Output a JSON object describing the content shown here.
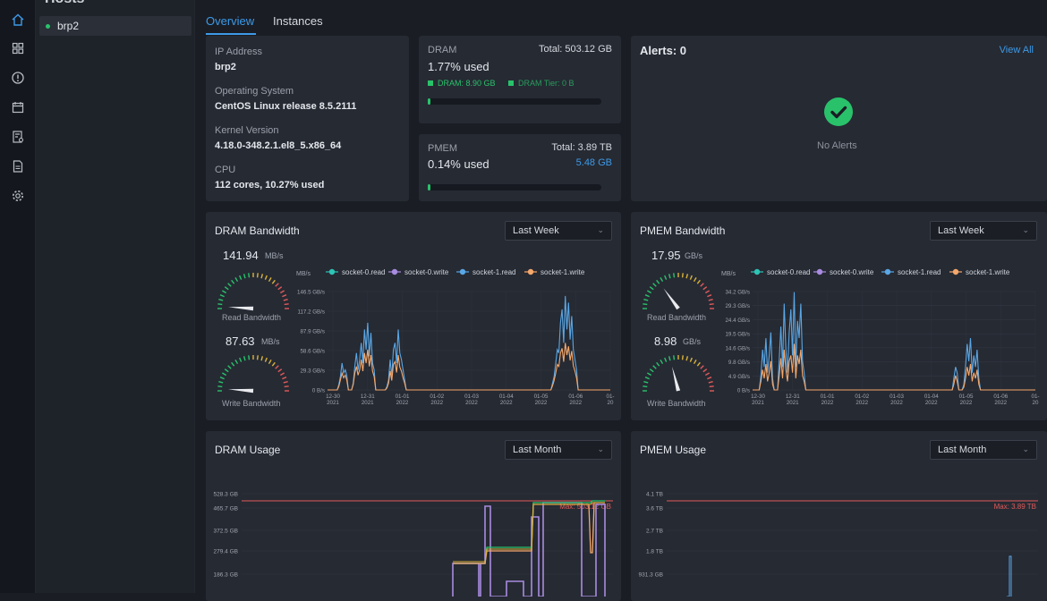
{
  "sidebar": {
    "header": "Hosts",
    "hosts": [
      {
        "name": "brp2",
        "status": "online"
      }
    ]
  },
  "rail_icons": [
    "home-icon",
    "dashboard-grid-icon",
    "alert-circle-icon",
    "calendar-icon",
    "report-icon",
    "document-icon",
    "settings-gear-icon"
  ],
  "tabs": [
    {
      "label": "Overview",
      "active": true
    },
    {
      "label": "Instances",
      "active": false
    }
  ],
  "host_info": {
    "ip_label": "IP Address",
    "ip_value": "brp2",
    "os_label": "Operating System",
    "os_value": "CentOS Linux release 8.5.2111",
    "kernel_label": "Kernel Version",
    "kernel_value": "4.18.0-348.2.1.el8_5.x86_64",
    "cpu_label": "CPU",
    "cpu_value": "112 cores, 10.27% used"
  },
  "dram_card": {
    "title": "DRAM",
    "total": "Total: 503.12 GB",
    "used": "1.77% used",
    "legend_dram": "DRAM: 8.90 GB",
    "legend_tier": "DRAM Tier: 0 B",
    "usage_fraction": 0.0177
  },
  "pmem_card": {
    "title": "PMEM",
    "total": "Total: 3.89 TB",
    "used": "0.14% used",
    "capacity": "5.48 GB",
    "usage_fraction": 0.0014
  },
  "alerts": {
    "title": "Alerts: 0",
    "view_all": "View All",
    "empty_text": "No Alerts"
  },
  "colors": {
    "accent": "#3d9ae8",
    "green": "#29c26b",
    "socket0read": "#2ec4b6",
    "socket0write": "#a98be0",
    "socket1read": "#5aa7e6",
    "socket1write": "#f5a86b",
    "max_line": "#e05a5a"
  },
  "dram_bw": {
    "title": "DRAM Bandwidth",
    "range": "Last Week",
    "read_value": "141.94",
    "read_unit": "MB/s",
    "read_label": "Read Bandwidth",
    "write_value": "87.63",
    "write_unit": "MB/s",
    "write_label": "Write Bandwidth",
    "read_fraction": 0.02,
    "write_fraction": 0.02
  },
  "pmem_bw": {
    "title": "PMEM Bandwidth",
    "range": "Last Week",
    "read_value": "17.95",
    "read_unit": "GB/s",
    "read_label": "Read Bandwidth",
    "write_value": "8.98",
    "write_unit": "GB/s",
    "write_label": "Write Bandwidth",
    "read_fraction": 0.3,
    "write_fraction": 0.42
  },
  "dram_usage": {
    "title": "DRAM Usage",
    "range": "Last Month",
    "max_label": "Max: 503.12 GB"
  },
  "pmem_usage": {
    "title": "PMEM Usage",
    "range": "Last Month",
    "max_label": "Max: 3.89 TB"
  },
  "chart_data": [
    {
      "type": "line",
      "ylabel": "MB/s",
      "yticks": [
        "0 B/s",
        "29.3 GB/s",
        "58.6 GB/s",
        "87.9 GB/s",
        "117.2 GB/s",
        "146.5 GB/s"
      ],
      "xticks": [
        "12-30\n2021",
        "12-31\n2021",
        "01-01\n2022",
        "01-02\n2022",
        "01-03\n2022",
        "01-04\n2022",
        "01-05\n2022",
        "01-06\n2022",
        "01-\n20"
      ],
      "series": [
        {
          "name": "socket-0.read",
          "color": "#2ec4b6"
        },
        {
          "name": "socket-0.write",
          "color": "#a98be0"
        },
        {
          "name": "socket-1.read",
          "color": "#5aa7e6",
          "values": [
            0,
            0,
            0,
            0,
            0,
            0,
            0,
            8,
            20,
            40,
            25,
            30,
            22,
            0,
            0,
            0,
            10,
            35,
            55,
            30,
            45,
            70,
            40,
            90,
            60,
            100,
            50,
            85,
            40,
            30,
            0,
            0,
            0,
            0,
            0,
            0,
            0,
            5,
            15,
            45,
            20,
            60,
            70,
            40,
            90,
            55,
            45,
            30,
            15,
            0,
            0,
            0,
            0,
            0,
            0,
            0,
            0,
            0,
            0,
            0,
            0,
            0,
            0,
            0,
            0,
            0,
            0,
            0,
            0,
            0,
            0,
            0,
            0,
            0,
            0,
            0,
            0,
            0,
            0,
            0,
            0,
            0,
            0,
            0,
            0,
            0,
            0,
            0,
            0,
            0,
            0,
            0,
            0,
            0,
            0,
            0,
            0,
            0,
            0,
            0,
            0,
            0,
            0,
            0,
            0,
            0,
            0,
            0,
            0,
            0,
            0,
            0,
            0,
            0,
            0,
            0,
            0,
            0,
            0,
            0,
            0,
            0,
            0,
            0,
            0,
            0,
            0,
            0,
            0,
            0,
            0,
            0,
            0,
            0,
            0,
            0,
            0,
            0,
            0,
            0,
            10,
            20,
            40,
            60,
            55,
            100,
            120,
            70,
            140,
            90,
            130,
            75,
            110,
            60,
            45,
            30,
            0,
            0,
            0,
            0,
            0,
            0,
            0,
            0,
            0,
            0,
            0,
            0,
            0,
            0,
            0,
            0,
            0,
            0,
            0,
            0,
            0
          ]
        },
        {
          "name": "socket-1.write",
          "color": "#f5a86b",
          "values": [
            0,
            0,
            0,
            0,
            0,
            0,
            0,
            5,
            15,
            25,
            18,
            22,
            15,
            0,
            0,
            0,
            8,
            25,
            35,
            22,
            30,
            45,
            28,
            55,
            40,
            60,
            35,
            52,
            28,
            20,
            0,
            0,
            0,
            0,
            0,
            0,
            0,
            3,
            10,
            28,
            14,
            38,
            42,
            26,
            52,
            34,
            28,
            18,
            10,
            0,
            0,
            0,
            0,
            0,
            0,
            0,
            0,
            0,
            0,
            0,
            0,
            0,
            0,
            0,
            0,
            0,
            0,
            0,
            0,
            0,
            0,
            0,
            0,
            0,
            0,
            0,
            0,
            0,
            0,
            0,
            0,
            0,
            0,
            0,
            0,
            0,
            0,
            0,
            0,
            0,
            0,
            0,
            0,
            0,
            0,
            0,
            0,
            0,
            0,
            0,
            0,
            0,
            0,
            0,
            0,
            0,
            0,
            0,
            0,
            0,
            0,
            0,
            0,
            0,
            0,
            0,
            0,
            0,
            0,
            0,
            0,
            0,
            0,
            0,
            0,
            0,
            0,
            0,
            0,
            0,
            0,
            0,
            0,
            0,
            0,
            0,
            0,
            0,
            0,
            0,
            6,
            14,
            25,
            38,
            35,
            55,
            62,
            42,
            70,
            52,
            65,
            44,
            58,
            36,
            28,
            18,
            0,
            0,
            0,
            0,
            0,
            0,
            0,
            0,
            0,
            0,
            0,
            0,
            0,
            0,
            0,
            0,
            0,
            0,
            0,
            0,
            0
          ]
        }
      ],
      "ylim": [
        0,
        146.5
      ]
    },
    {
      "type": "line",
      "ylabel": "MB/s",
      "yticks": [
        "0 B/s",
        "4.9 GB/s",
        "9.8 GB/s",
        "14.6 GB/s",
        "19.5 GB/s",
        "24.4 GB/s",
        "29.3 GB/s",
        "34.2 GB/s"
      ],
      "xticks": [
        "12-30\n2021",
        "12-31\n2021",
        "01-01\n2022",
        "01-02\n2022",
        "01-03\n2022",
        "01-04\n2022",
        "01-05\n2022",
        "01-06\n2022",
        "01-\n20"
      ],
      "series": [
        {
          "name": "socket-0.read",
          "color": "#2ec4b6"
        },
        {
          "name": "socket-0.write",
          "color": "#a98be0"
        },
        {
          "name": "socket-1.read",
          "color": "#5aa7e6",
          "values": [
            0,
            0,
            0,
            0,
            0,
            5,
            14,
            8,
            18,
            6,
            12,
            20,
            4,
            0,
            0,
            0,
            10,
            22,
            8,
            30,
            14,
            6,
            20,
            28,
            12,
            34,
            8,
            24,
            18,
            30,
            10,
            6,
            0,
            0,
            0,
            0,
            0,
            0,
            0,
            0,
            0,
            0,
            0,
            0,
            0,
            0,
            0,
            0,
            0,
            0,
            0,
            0,
            0,
            0,
            0,
            0,
            0,
            0,
            0,
            0,
            0,
            0,
            0,
            0,
            0,
            0,
            0,
            0,
            0,
            0,
            0,
            0,
            0,
            0,
            0,
            0,
            0,
            0,
            0,
            0,
            0,
            0,
            0,
            0,
            0,
            0,
            0,
            0,
            0,
            0,
            0,
            0,
            0,
            0,
            0,
            0,
            0,
            0,
            0,
            0,
            0,
            0,
            0,
            0,
            0,
            0,
            0,
            0,
            0,
            0,
            0,
            0,
            0,
            0,
            0,
            0,
            0,
            0,
            0,
            0,
            0,
            4,
            8,
            6,
            0,
            0,
            0,
            2,
            8,
            16,
            10,
            18,
            6,
            12,
            8,
            14,
            4,
            0,
            0,
            0,
            0,
            0,
            0,
            0,
            0,
            0,
            0,
            0,
            0,
            0,
            0,
            0,
            0,
            0,
            0,
            0,
            0,
            0,
            0,
            0,
            0,
            0,
            0,
            0,
            0,
            0,
            0,
            0,
            0,
            0,
            0
          ]
        },
        {
          "name": "socket-1.write",
          "color": "#f5a86b",
          "values": [
            0,
            0,
            0,
            0,
            0,
            3,
            7,
            4,
            9,
            3,
            6,
            10,
            2,
            0,
            0,
            0,
            5,
            11,
            4,
            14,
            7,
            3,
            10,
            12,
            6,
            16,
            4,
            12,
            9,
            14,
            5,
            3,
            0,
            0,
            0,
            0,
            0,
            0,
            0,
            0,
            0,
            0,
            0,
            0,
            0,
            0,
            0,
            0,
            0,
            0,
            0,
            0,
            0,
            0,
            0,
            0,
            0,
            0,
            0,
            0,
            0,
            0,
            0,
            0,
            0,
            0,
            0,
            0,
            0,
            0,
            0,
            0,
            0,
            0,
            0,
            0,
            0,
            0,
            0,
            0,
            0,
            0,
            0,
            0,
            0,
            0,
            0,
            0,
            0,
            0,
            0,
            0,
            0,
            0,
            0,
            0,
            0,
            0,
            0,
            0,
            0,
            0,
            0,
            0,
            0,
            0,
            0,
            0,
            0,
            0,
            0,
            0,
            0,
            0,
            0,
            0,
            0,
            0,
            0,
            0,
            0,
            2,
            5,
            3,
            0,
            0,
            0,
            1,
            4,
            8,
            5,
            9,
            3,
            6,
            4,
            7,
            2,
            0,
            0,
            0,
            0,
            0,
            0,
            0,
            0,
            0,
            0,
            0,
            0,
            0,
            0,
            0,
            0,
            0,
            0,
            0,
            0,
            0,
            0,
            0,
            0,
            0,
            0,
            0,
            0,
            0,
            0,
            0,
            0,
            0,
            0
          ]
        }
      ],
      "ylim": [
        0,
        34.2
      ]
    },
    {
      "type": "line",
      "yticks": [
        "528.3 GB",
        "465.7 GB",
        "372.5 GB",
        "279.4 GB",
        "186.3 GB"
      ],
      "max_label": "Max: 503.12 GB"
    },
    {
      "type": "line",
      "yticks": [
        "4.1 TB",
        "3.6 TB",
        "2.7 TB",
        "1.8 TB",
        "931.3 GB"
      ],
      "max_label": "Max: 3.89 TB"
    }
  ]
}
